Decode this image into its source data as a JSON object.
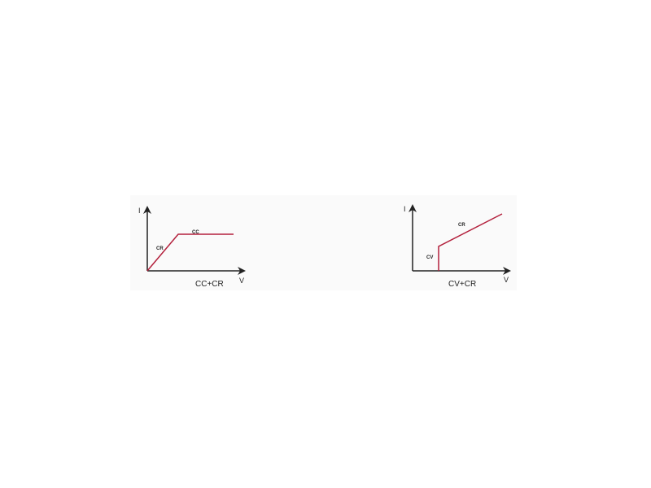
{
  "colors": {
    "curve": "#b3203c",
    "axis": "#222222"
  },
  "diagrams": [
    {
      "axis_y": "I",
      "axis_x": "V",
      "caption": "CC+CR",
      "region_labels": [
        "CR",
        "CC"
      ]
    },
    {
      "axis_y": "I",
      "axis_x": "V",
      "caption": "CV+CR",
      "region_labels": [
        "CV",
        "CR"
      ]
    }
  ]
}
